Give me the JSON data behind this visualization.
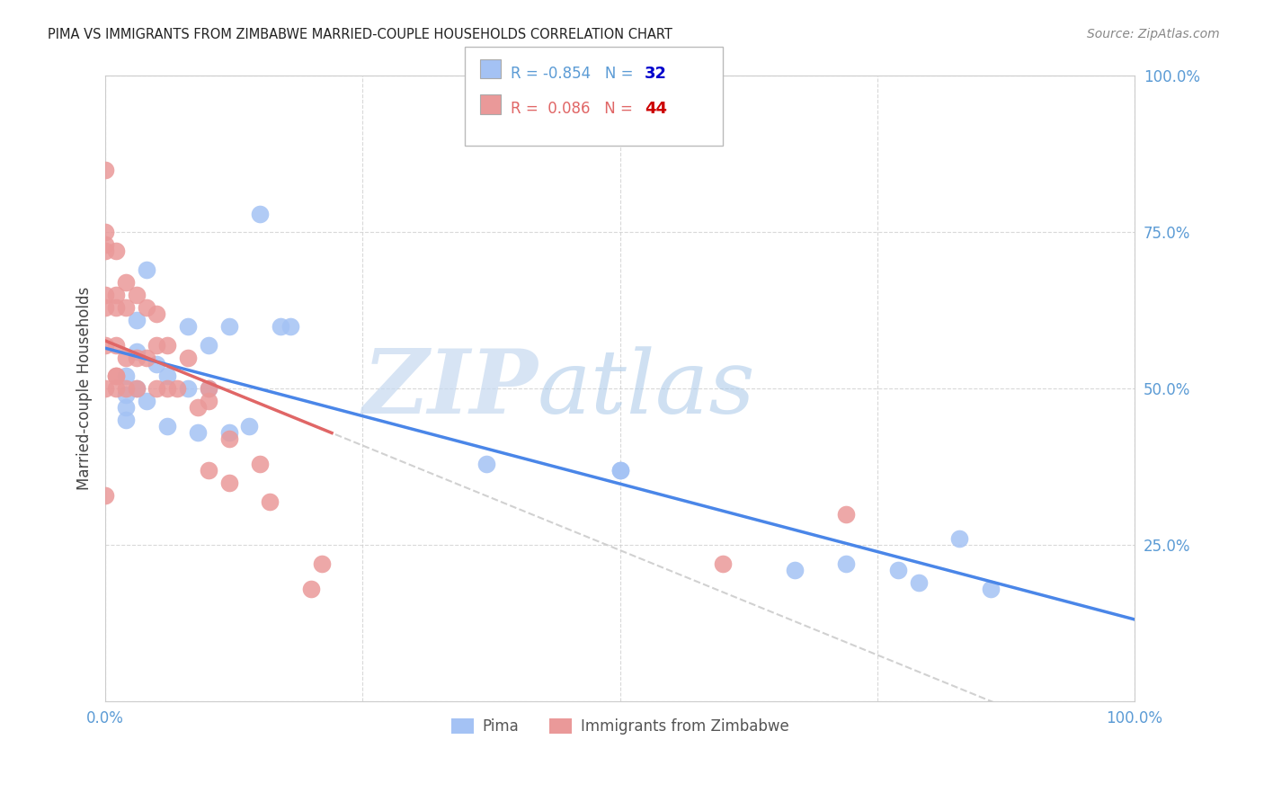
{
  "title": "PIMA VS IMMIGRANTS FROM ZIMBABWE MARRIED-COUPLE HOUSEHOLDS CORRELATION CHART",
  "source": "Source: ZipAtlas.com",
  "ylabel": "Married-couple Households",
  "xlim": [
    0.0,
    1.0
  ],
  "ylim": [
    0.0,
    1.0
  ],
  "xticks": [
    0.0,
    0.25,
    0.5,
    0.75,
    1.0
  ],
  "yticks": [
    0.0,
    0.25,
    0.5,
    0.75,
    1.0
  ],
  "xticklabels": [
    "0.0%",
    "",
    "",
    "",
    "100.0%"
  ],
  "yticklabels": [
    "",
    "25.0%",
    "50.0%",
    "75.0%",
    "100.0%"
  ],
  "blue_color": "#a4c2f4",
  "pink_color": "#ea9999",
  "blue_line_color": "#4a86e8",
  "pink_line_solid_color": "#e06666",
  "pink_line_dash_color": "#cccccc",
  "watermark_zip": "ZIP",
  "watermark_atlas": "atlas",
  "legend_label1": "Pima",
  "legend_label2": "Immigrants from Zimbabwe",
  "blue_scatter_x": [
    0.02,
    0.02,
    0.02,
    0.02,
    0.03,
    0.03,
    0.03,
    0.04,
    0.04,
    0.05,
    0.06,
    0.06,
    0.08,
    0.08,
    0.09,
    0.1,
    0.1,
    0.12,
    0.12,
    0.14,
    0.15,
    0.17,
    0.18,
    0.37,
    0.5,
    0.5,
    0.67,
    0.72,
    0.77,
    0.79,
    0.83,
    0.86
  ],
  "blue_scatter_y": [
    0.52,
    0.49,
    0.47,
    0.45,
    0.61,
    0.56,
    0.5,
    0.69,
    0.48,
    0.54,
    0.52,
    0.44,
    0.6,
    0.5,
    0.43,
    0.57,
    0.5,
    0.6,
    0.43,
    0.44,
    0.78,
    0.6,
    0.6,
    0.38,
    0.37,
    0.37,
    0.21,
    0.22,
    0.21,
    0.19,
    0.26,
    0.18
  ],
  "pink_scatter_x": [
    0.0,
    0.0,
    0.0,
    0.0,
    0.0,
    0.0,
    0.0,
    0.0,
    0.0,
    0.01,
    0.01,
    0.01,
    0.01,
    0.01,
    0.01,
    0.01,
    0.02,
    0.02,
    0.02,
    0.02,
    0.03,
    0.03,
    0.03,
    0.04,
    0.04,
    0.05,
    0.05,
    0.05,
    0.06,
    0.06,
    0.07,
    0.08,
    0.09,
    0.1,
    0.1,
    0.1,
    0.12,
    0.12,
    0.15,
    0.16,
    0.2,
    0.21,
    0.6,
    0.72
  ],
  "pink_scatter_y": [
    0.85,
    0.75,
    0.73,
    0.72,
    0.65,
    0.63,
    0.57,
    0.5,
    0.33,
    0.72,
    0.65,
    0.63,
    0.57,
    0.52,
    0.52,
    0.5,
    0.67,
    0.63,
    0.55,
    0.5,
    0.65,
    0.55,
    0.5,
    0.63,
    0.55,
    0.62,
    0.57,
    0.5,
    0.57,
    0.5,
    0.5,
    0.55,
    0.47,
    0.5,
    0.48,
    0.37,
    0.42,
    0.35,
    0.38,
    0.32,
    0.18,
    0.22,
    0.22,
    0.3
  ],
  "R_blue": -0.854,
  "N_blue": 32,
  "R_pink": 0.086,
  "N_pink": 44
}
